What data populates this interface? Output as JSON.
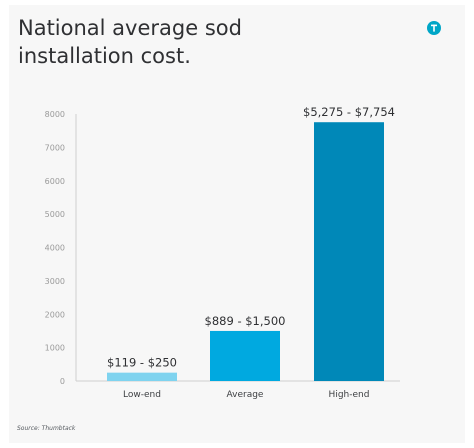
{
  "brand": {
    "accent": "#00a6c7",
    "logo_icon": "thumbtack-icon"
  },
  "footer": {
    "source": "Source: Thumbtack"
  },
  "chart_data": {
    "type": "bar",
    "title": "National average sod installation cost.",
    "title_lines": [
      "National average sod",
      "installation cost."
    ],
    "xlabel": "",
    "ylabel": "",
    "ylim": [
      0,
      8000
    ],
    "yticks": [
      0,
      1000,
      2000,
      3000,
      4000,
      5000,
      6000,
      7000,
      8000
    ],
    "grid": false,
    "categories": [
      "Low-end",
      "Average",
      "High-end"
    ],
    "values": [
      250,
      1500,
      7754
    ],
    "data_labels": [
      "$119 - $250",
      "$889 - $1,500",
      "$5,275 - $7,754"
    ],
    "colors": [
      "#7fd3ef",
      "#00a9e0",
      "#0088b8"
    ],
    "axis_color": "#cfcfcf",
    "tick_color": "#9a9a9a"
  }
}
